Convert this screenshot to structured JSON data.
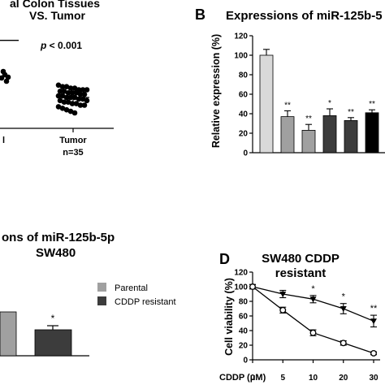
{
  "panels": {
    "A": {
      "title_line1": "al Colon Tissues",
      "title_line2": "VS. Tumor",
      "pvalue_p": "p",
      "pvalue_rest": " < 0.001",
      "xlabel_normal": "l",
      "xlabel_tumor": "Tumor",
      "xlabel_n": "n=35"
    },
    "B": {
      "letter": "B",
      "title": "Expressions of miR-125b-5",
      "ylabel": "Relative expression (%)"
    },
    "C": {
      "title_line1": "ons of miR-125b-5p",
      "title_line2": "SW480",
      "legend_parental": "Parental",
      "legend_resistant": "CDDP resistant",
      "star": "*"
    },
    "D": {
      "letter": "D",
      "title_line1": "SW480 CDDP",
      "title_line2": "resistant",
      "ylabel": "Cell viability (%)",
      "xlabel": "CDDP (μM)"
    }
  },
  "colors": {
    "light_gray": "#d9d9d9",
    "mid_gray": "#a0a0a0",
    "dark_gray": "#3c3c3c",
    "black": "#000000"
  },
  "chart_data": [
    {
      "panel": "A",
      "type": "scatter",
      "categories": [
        "l",
        "Tumor"
      ],
      "series": [
        {
          "category": "Tumor",
          "values": [
            28,
            27,
            27,
            26,
            26,
            25,
            25,
            25,
            24,
            24,
            23,
            23,
            23,
            22,
            22,
            21,
            21,
            20,
            20,
            20,
            19,
            19,
            18,
            18,
            17,
            17,
            16,
            16,
            15,
            15,
            14,
            13,
            12,
            11,
            10
          ]
        }
      ],
      "mean_lines": [
        {
          "category": "l",
          "value": 57
        },
        {
          "category": "Tumor",
          "value": 20
        }
      ],
      "annotation": "p < 0.001"
    },
    {
      "panel": "B",
      "type": "bar",
      "ylabel": "Relative expression (%)",
      "ylim": [
        0,
        120
      ],
      "yticks": [
        0,
        20,
        40,
        60,
        80,
        100,
        120
      ],
      "values": [
        100,
        37,
        23,
        38,
        33,
        41
      ],
      "errors": [
        6,
        6,
        6,
        7,
        3,
        3
      ],
      "sig": [
        "",
        "**",
        "**",
        "*",
        "**",
        "**"
      ],
      "colors": [
        "#d9d9d9",
        "#a0a0a0",
        "#a0a0a0",
        "#3c3c3c",
        "#3c3c3c",
        "#000000"
      ]
    },
    {
      "panel": "C",
      "type": "bar",
      "series": [
        {
          "name": "Parental",
          "value": 100
        },
        {
          "name": "CDDP resistant",
          "value": 33,
          "error": 4,
          "sig": "*"
        }
      ]
    },
    {
      "panel": "D",
      "type": "line",
      "xlabel": "CDDP (μM)",
      "ylabel": "Cell viability (%)",
      "x": [
        0,
        5,
        10,
        20,
        30
      ],
      "ylim": [
        0,
        120
      ],
      "yticks": [
        0,
        20,
        40,
        60,
        80,
        100,
        120
      ],
      "series": [
        {
          "marker": "triangle",
          "values": [
            100,
            90,
            83,
            70,
            53
          ],
          "errors": [
            3,
            5,
            5,
            7,
            8
          ],
          "sig": [
            "",
            "",
            "*",
            "*",
            "**"
          ]
        },
        {
          "marker": "circle",
          "values": [
            100,
            68,
            37,
            23,
            9
          ],
          "errors": [
            3,
            4,
            4,
            3,
            2
          ]
        }
      ]
    }
  ]
}
